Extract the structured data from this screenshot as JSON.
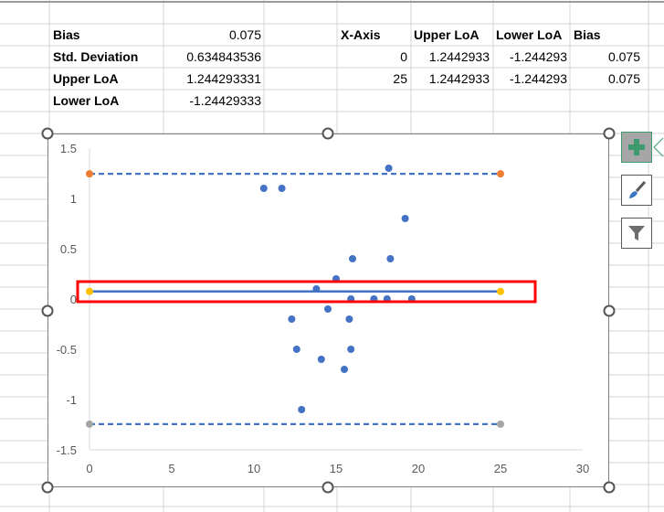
{
  "sheet": {
    "stats": [
      {
        "label": "Bias",
        "value": "0.075"
      },
      {
        "label": "Std. Deviation",
        "value": "0.634843536"
      },
      {
        "label": "Upper LoA",
        "value": "1.244293331"
      },
      {
        "label": "Lower LoA",
        "value": "-1.24429333"
      }
    ],
    "table": {
      "headers": [
        "X-Axis",
        "Upper LoA",
        "Lower LoA",
        "Bias"
      ],
      "rows": [
        [
          "0",
          "1.2442933",
          "-1.244293",
          "0.075"
        ],
        [
          "25",
          "1.2442933",
          "-1.244293",
          "0.075"
        ]
      ]
    }
  },
  "chart_tools": [
    {
      "name": "chart-elements",
      "icon": "plus-icon"
    },
    {
      "name": "chart-styles",
      "icon": "paintbrush-icon"
    },
    {
      "name": "chart-filters",
      "icon": "filter-icon"
    }
  ],
  "chart_data": {
    "type": "scatter",
    "title": "",
    "xlabel": "",
    "ylabel": "",
    "xlim": [
      0,
      30
    ],
    "ylim": [
      -1.5,
      1.5
    ],
    "x_ticks": [
      "0",
      "5",
      "10",
      "15",
      "20",
      "25",
      "30"
    ],
    "y_ticks": [
      "1.5",
      "1",
      "0.5",
      "0",
      "-0.5",
      "-1",
      "-1.5"
    ],
    "grid": false,
    "colors": {
      "points": "#4472c4",
      "upper_marker": "#ed7d31",
      "lower_marker": "#a5a5a5",
      "bias_marker": "#ffc000",
      "lines": "#4472c4",
      "highlight": "#ff0000"
    },
    "points": [
      [
        10.6,
        1.1
      ],
      [
        11.7,
        1.1
      ],
      [
        18.2,
        1.3
      ],
      [
        19.2,
        0.8
      ],
      [
        16.0,
        0.4
      ],
      [
        18.3,
        0.4
      ],
      [
        15.0,
        0.2
      ],
      [
        13.8,
        0.1
      ],
      [
        15.9,
        0.0
      ],
      [
        17.3,
        0.0
      ],
      [
        18.1,
        0.0
      ],
      [
        19.6,
        0.0
      ],
      [
        14.5,
        -0.1
      ],
      [
        12.3,
        -0.2
      ],
      [
        15.8,
        -0.2
      ],
      [
        12.6,
        -0.5
      ],
      [
        15.9,
        -0.5
      ],
      [
        14.1,
        -0.6
      ],
      [
        15.5,
        -0.7
      ],
      [
        12.9,
        -1.1
      ]
    ],
    "lines": [
      {
        "series": "Upper LoA",
        "x": [
          0,
          25
        ],
        "y": [
          1.2442933,
          1.2442933
        ],
        "style": "dashed"
      },
      {
        "series": "Lower LoA",
        "x": [
          0,
          25
        ],
        "y": [
          -1.244293,
          -1.244293
        ],
        "style": "dashed"
      },
      {
        "series": "Bias",
        "x": [
          0,
          25
        ],
        "y": [
          0.075,
          0.075
        ],
        "style": "solid",
        "highlighted": true
      }
    ]
  }
}
